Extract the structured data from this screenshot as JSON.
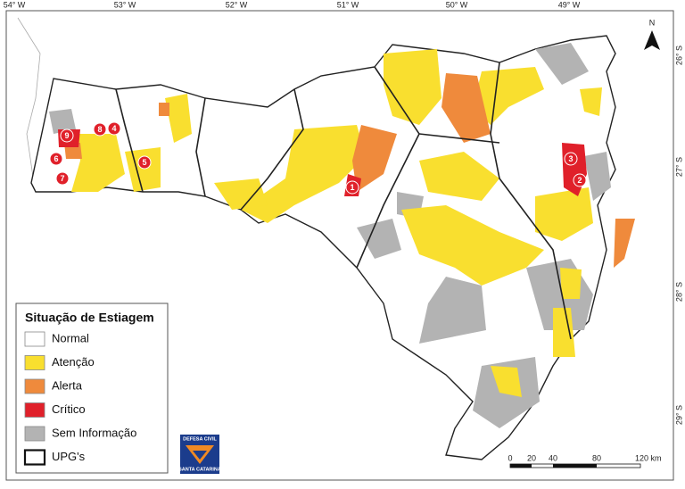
{
  "graticule": {
    "top": [
      "54° W",
      "53° W",
      "52° W",
      "51° W",
      "50° W",
      "49° W"
    ],
    "right": [
      "26° S",
      "27° S",
      "28° S",
      "29° S"
    ]
  },
  "north": "N",
  "legend": {
    "title": "Situação de Estiagem",
    "items": [
      {
        "label": "Normal",
        "color": "#ffffff"
      },
      {
        "label": "Atenção",
        "color": "#f9df2f"
      },
      {
        "label": "Alerta",
        "color": "#ef8a3c"
      },
      {
        "label": "Crítico",
        "color": "#e0202a"
      },
      {
        "label": "Sem Informação",
        "color": "#b3b3b3"
      },
      {
        "label": "UPG's",
        "color": "#ffffff"
      }
    ]
  },
  "markers": [
    "1",
    "2",
    "3",
    "4",
    "5",
    "6",
    "7",
    "8",
    "9"
  ],
  "scale": {
    "ticks": [
      "0",
      "20",
      "40",
      "80"
    ],
    "end": "120 km"
  },
  "logo": {
    "top": "DEFESA CIVIL",
    "bottom": "SANTA CATARINA"
  }
}
